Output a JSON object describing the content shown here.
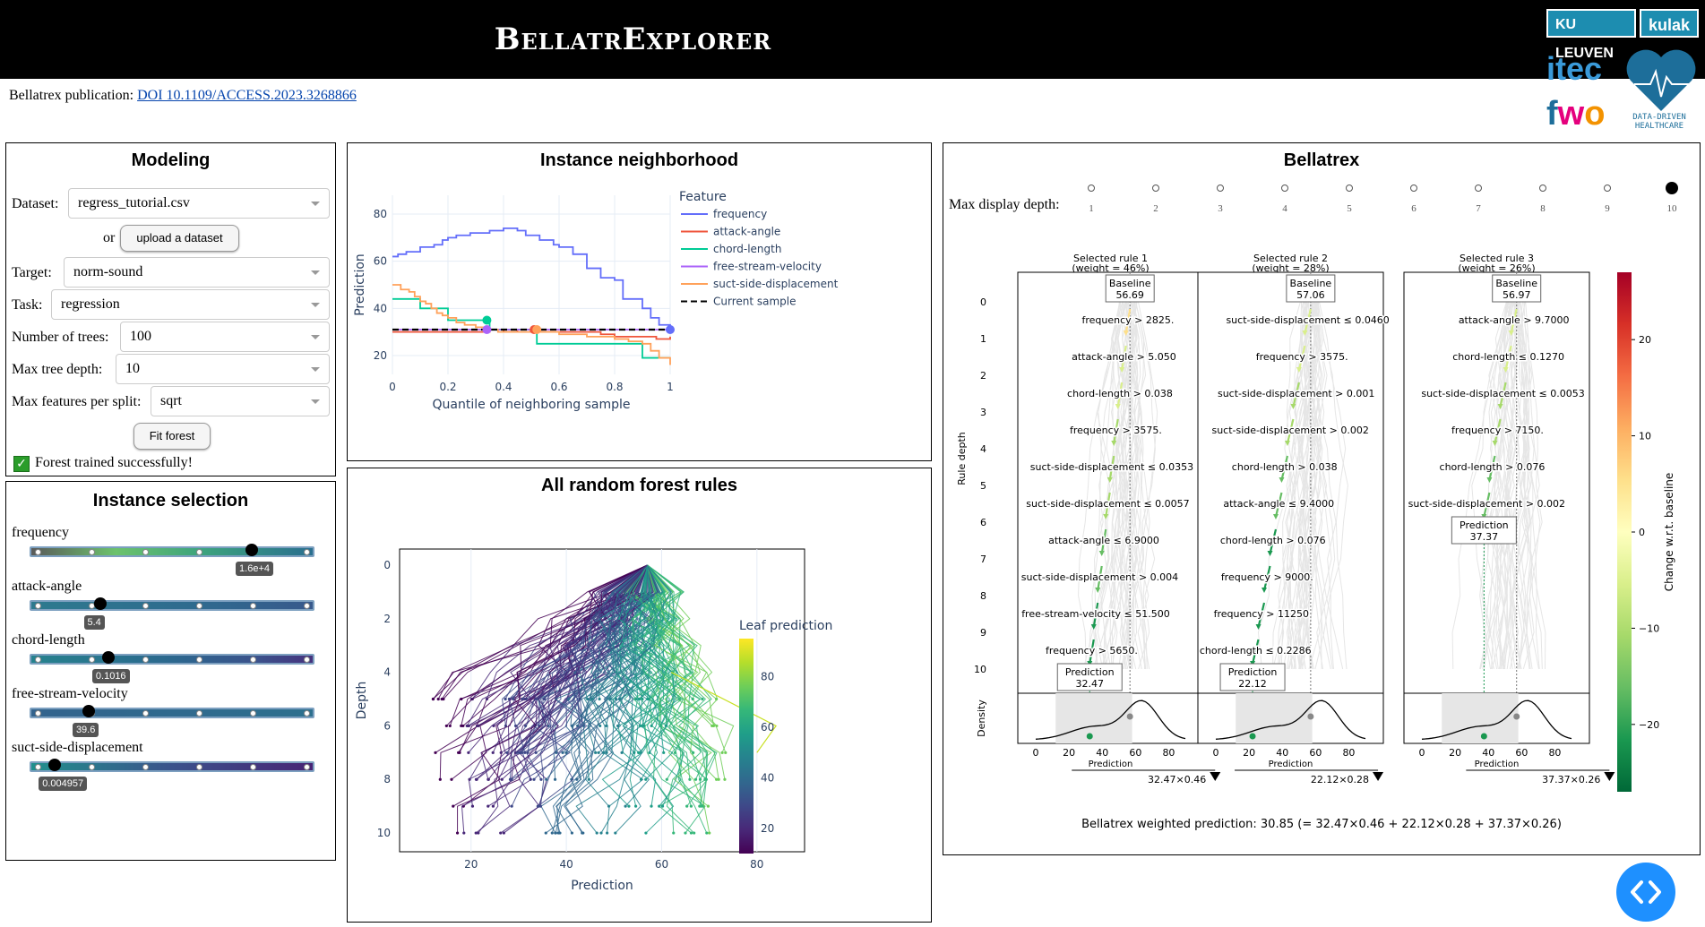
{
  "header": {
    "title": "BellatrExplorer",
    "logos": {
      "ku": "KU LEUVEN",
      "kulak": "kulak",
      "itec": "itec",
      "fwo": "fwo",
      "ddh": "DATA-DRIVEN HEALTHCARE"
    }
  },
  "publication": {
    "label": "Bellatrex publication:",
    "link_text": "DOI 10.1109/ACCESS.2023.3268866"
  },
  "modeling": {
    "title": "Modeling",
    "dataset_label": "Dataset:",
    "dataset_value": "regress_tutorial.csv",
    "or_label": "or",
    "upload_label": "upload a dataset",
    "target_label": "Target:",
    "target_value": "norm-sound",
    "task_label": "Task:",
    "task_value": "regression",
    "trees_label": "Number of trees:",
    "trees_value": "100",
    "depth_label": "Max tree depth:",
    "depth_value": "10",
    "features_label": "Max features per split:",
    "features_value": "sqrt",
    "fit_label": "Fit forest",
    "status_text": "Forest trained successfully!"
  },
  "instance_selection": {
    "title": "Instance selection",
    "sliders": [
      {
        "label": "frequency",
        "value_text": "1.6e+4",
        "fraction": 0.79
      },
      {
        "label": "attack-angle",
        "value_text": "5.4",
        "fraction": 0.25
      },
      {
        "label": "chord-length",
        "value_text": "0.1016",
        "fraction": 0.28
      },
      {
        "label": "free-stream-velocity",
        "value_text": "39.6",
        "fraction": 0.21
      },
      {
        "label": "suct-side-displacement",
        "value_text": "0.004957",
        "fraction": 0.09
      }
    ]
  },
  "neighborhood": {
    "title": "Instance neighborhood",
    "chart_data": {
      "type": "line",
      "xlabel": "Quantile of neighboring sample",
      "ylabel": "Prediction",
      "xlim": [
        0,
        1
      ],
      "ylim": [
        12,
        88
      ],
      "xticks": [
        "0",
        "0.2",
        "0.4",
        "0.6",
        "0.8",
        "1"
      ],
      "yticks": [
        "20",
        "40",
        "60",
        "80"
      ],
      "legend_title": "Feature",
      "legend_position": "top-right",
      "series": [
        {
          "name": "frequency",
          "color": "#636efa",
          "x": [
            0,
            0.02,
            0.05,
            0.07,
            0.1,
            0.13,
            0.15,
            0.18,
            0.2,
            0.23,
            0.25,
            0.28,
            0.3,
            0.35,
            0.4,
            0.45,
            0.48,
            0.5,
            0.53,
            0.55,
            0.58,
            0.6,
            0.63,
            0.65,
            0.7,
            0.73,
            0.75,
            0.8,
            0.83,
            0.88,
            0.9,
            0.93,
            0.96,
            1
          ],
          "y": [
            62,
            63,
            64,
            64,
            66,
            66,
            67,
            69,
            70,
            71,
            71,
            72,
            72,
            73,
            74,
            73,
            71,
            71,
            69,
            69,
            67,
            66,
            66,
            63,
            57,
            57,
            53,
            52,
            44,
            44,
            40,
            36,
            33,
            31
          ]
        },
        {
          "name": "attack-angle",
          "color": "#ef553b",
          "x": [
            0,
            0.1,
            0.2,
            0.3,
            0.35,
            0.4,
            0.45,
            0.5,
            0.55,
            0.6,
            0.65,
            0.7,
            0.75,
            0.8,
            0.85,
            0.9,
            0.95,
            1
          ],
          "y": [
            30,
            30,
            30,
            30,
            31,
            30,
            31,
            30,
            30,
            30,
            30,
            30,
            29,
            28,
            28,
            28,
            27,
            28
          ]
        },
        {
          "name": "chord-length",
          "color": "#00cc96",
          "x": [
            0,
            0.09,
            0.1,
            0.19,
            0.2,
            0.34,
            0.35,
            0.5,
            0.51,
            0.52,
            0.8,
            0.88,
            0.9,
            1
          ],
          "y": [
            44,
            44,
            40,
            40,
            35,
            35,
            31,
            31,
            30,
            25,
            25,
            25,
            19,
            19
          ]
        },
        {
          "name": "free-stream-velocity",
          "color": "#ab63fa",
          "x": [
            0,
            0.2,
            0.35,
            0.4,
            0.5,
            0.6,
            0.8,
            1
          ],
          "y": [
            31,
            31,
            31,
            31,
            31,
            31,
            31,
            31
          ]
        },
        {
          "name": "suct-side-displacement",
          "color": "#ffa15a",
          "x": [
            0,
            0.03,
            0.06,
            0.08,
            0.1,
            0.12,
            0.14,
            0.16,
            0.18,
            0.2,
            0.23,
            0.26,
            0.3,
            0.34,
            0.38,
            0.42,
            0.5,
            0.55,
            0.6,
            0.65,
            0.7,
            0.75,
            0.8,
            0.85,
            0.9,
            0.93,
            0.96,
            1
          ],
          "y": [
            50,
            48,
            47,
            45,
            43,
            42,
            40,
            38,
            37,
            36,
            34,
            33,
            32,
            31,
            30,
            30,
            30,
            30,
            29,
            29,
            28,
            28,
            27,
            26,
            25,
            22,
            19,
            16
          ]
        },
        {
          "name": "Current sample",
          "color": "#000000",
          "dashed": true,
          "x": [
            0,
            1
          ],
          "y": [
            31,
            31
          ]
        }
      ],
      "markers": [
        {
          "x": 0.34,
          "y": 35,
          "color": "#00cc96"
        },
        {
          "x": 0.34,
          "y": 31,
          "color": "#ab63fa"
        },
        {
          "x": 0.51,
          "y": 31,
          "color": "#ef553b"
        },
        {
          "x": 0.52,
          "y": 31,
          "color": "#ffa15a"
        },
        {
          "x": 1.0,
          "y": 31,
          "color": "#636efa"
        }
      ]
    }
  },
  "all_rules": {
    "title": "All random forest rules",
    "chart_data": {
      "type": "scatter",
      "xlabel": "Prediction",
      "ylabel": "Depth",
      "xlim": [
        5,
        90
      ],
      "ylim": [
        0,
        10.7
      ],
      "xticks": [
        "20",
        "40",
        "60",
        "80"
      ],
      "yticks": [
        "0",
        "2",
        "4",
        "6",
        "8",
        "10"
      ],
      "colorbar_title": "Leaf prediction",
      "colorbar_ticks": [
        "20",
        "40",
        "60",
        "80"
      ],
      "note": "paths from root (prediction 57, depth 0) down to leaves at depths 5–10; line color = leaf prediction"
    }
  },
  "bellatrex": {
    "title": "Bellatrex",
    "depth_label": "Max display depth:",
    "depth_options": [
      "1",
      "2",
      "3",
      "4",
      "5",
      "6",
      "7",
      "8",
      "9",
      "10"
    ],
    "depth_selected": "10",
    "y_axis_label": "Rule depth",
    "density_label": "Density",
    "x_axis_label": "Prediction",
    "x_ticks": [
      "0",
      "20",
      "40",
      "60",
      "80"
    ],
    "colorbar_label": "Change w.r.t. baseline",
    "colorbar_ticks": [
      "20",
      "10",
      "0",
      "−10",
      "−20"
    ],
    "rules": [
      {
        "title": "Selected rule 1",
        "weight": "(weight = 46%)",
        "baseline_label": "Baseline",
        "baseline": "56.69",
        "pred_label": "Prediction",
        "prediction": "32.47",
        "conditions": [
          "frequency >  2825.",
          "attack-angle >  5.050",
          "chord-length >  0.038",
          "frequency >  3575.",
          "suct-side-displacement  ≤  0.0353",
          "suct-side-displacement  ≤  0.0057",
          "attack-angle  ≤  6.9000",
          "suct-side-displacement >  0.004",
          "free-stream-velocity  ≤  51.500",
          "frequency >  5650."
        ],
        "product": "32.47×0.46",
        "pred_value": 32.47,
        "baseline_value": 56.69
      },
      {
        "title": "Selected rule 2",
        "weight": "(weight = 28%)",
        "baseline_label": "Baseline",
        "baseline": "57.06",
        "pred_label": "Prediction",
        "prediction": "22.12",
        "conditions": [
          "suct-side-displacement  ≤  0.0460",
          "frequency >  3575.",
          "suct-side-displacement >  0.001",
          "suct-side-displacement >  0.002",
          "chord-length >  0.038",
          "attack-angle  ≤  9.4000",
          "chord-length >  0.076",
          "frequency >  9000.",
          "frequency >  11250",
          "chord-length  ≤  0.2286"
        ],
        "product": "22.12×0.28",
        "pred_value": 22.12,
        "baseline_value": 57.06
      },
      {
        "title": "Selected rule 3",
        "weight": "(weight = 26%)",
        "baseline_label": "Baseline",
        "baseline": "56.97",
        "pred_label": "Prediction",
        "prediction": "37.37",
        "conditions": [
          "attack-angle >  9.7000",
          "chord-length  ≤  0.1270",
          "suct-side-displacement  ≤  0.0053",
          "frequency >  7150.",
          "chord-length >  0.076",
          "suct-side-displacement >  0.002"
        ],
        "product": "37.37×0.26",
        "pred_value": 37.37,
        "baseline_value": 56.97
      }
    ],
    "weighted_text": "Bellatrex weighted prediction: 30.85 (= 32.47×0.46 + 22.12×0.28 + 37.37×0.26)"
  },
  "fab": {
    "icon": "code-icon"
  }
}
